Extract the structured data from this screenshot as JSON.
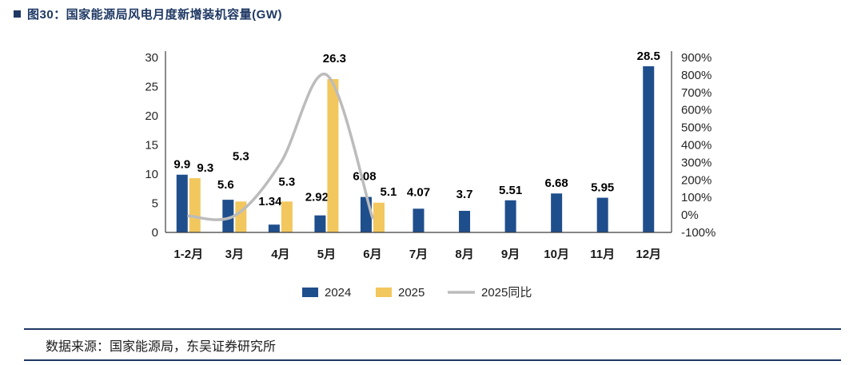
{
  "page": {
    "title": "图30：国家能源局风电月度新增装机容量(GW)",
    "source_note": "数据来源：国家能源局，东吴证券研究所"
  },
  "chart_data": {
    "type": "bar",
    "title": "国家能源局风电月度新增装机容量(GW)",
    "categories": [
      "1-2月",
      "3月",
      "4月",
      "5月",
      "6月",
      "7月",
      "8月",
      "9月",
      "10月",
      "11月",
      "12月"
    ],
    "series": [
      {
        "name": "2024",
        "type": "bar",
        "axis": "left",
        "color": "#1F4E8C",
        "values": [
          9.9,
          5.6,
          1.34,
          2.92,
          6.08,
          4.07,
          3.7,
          5.51,
          6.68,
          5.95,
          28.5
        ]
      },
      {
        "name": "2025",
        "type": "bar",
        "axis": "left",
        "color": "#F2C75D",
        "values": [
          9.3,
          5.3,
          5.3,
          26.3,
          5.1,
          null,
          null,
          null,
          null,
          null,
          null
        ]
      },
      {
        "name": "2025同比",
        "type": "line",
        "axis": "right",
        "color": "#BCBCBC",
        "unit": "%",
        "values": [
          -6,
          -5,
          296,
          801,
          -16,
          null,
          null,
          null,
          null,
          null,
          null
        ]
      }
    ],
    "left_axis": {
      "min": 0,
      "max": 30,
      "step": 5,
      "ticks": [
        "0",
        "5",
        "10",
        "15",
        "20",
        "25",
        "30"
      ]
    },
    "right_axis": {
      "min": -100,
      "max": 900,
      "step": 100,
      "ticks": [
        "-100%",
        "0%",
        "100%",
        "200%",
        "300%",
        "400%",
        "500%",
        "600%",
        "700%",
        "800%",
        "900%"
      ]
    },
    "legend": [
      {
        "label": "2024",
        "type": "rect",
        "color": "#1F4E8C"
      },
      {
        "label": "2025",
        "type": "rect",
        "color": "#F2C75D"
      },
      {
        "label": "2025同比",
        "type": "line",
        "color": "#BCBCBC"
      }
    ],
    "grid": false,
    "legend_position": "bottom",
    "ylim_left": [
      0,
      30
    ],
    "ylim_right": [
      -100,
      900
    ]
  }
}
